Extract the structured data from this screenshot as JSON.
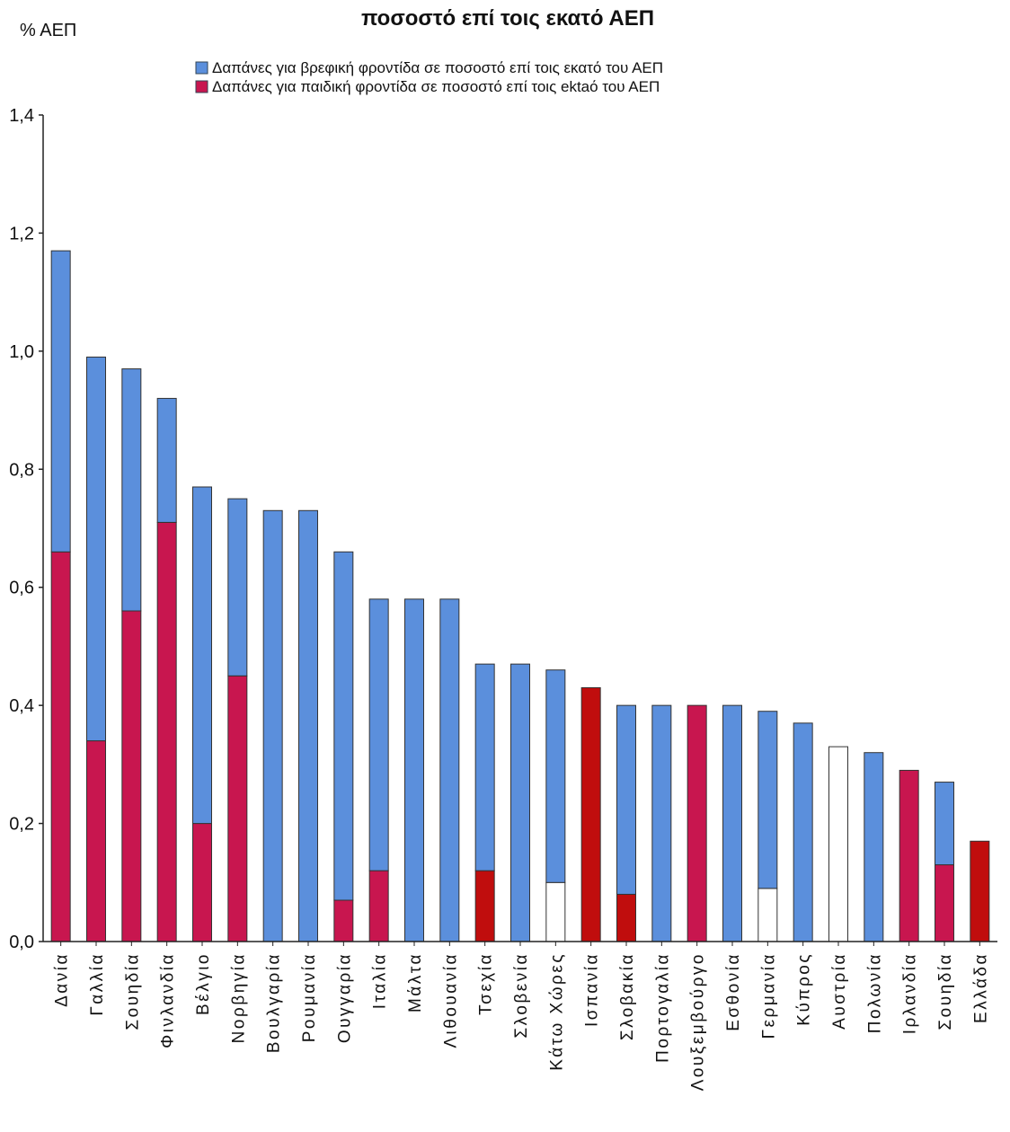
{
  "chart_data": {
    "type": "bar",
    "stacked": true,
    "title": "ποσοστό επί τοις εκατό ΑΕΠ",
    "ylabel": "% ΑΕΠ",
    "xlabel": "",
    "ylim": [
      0,
      1.4
    ],
    "y_ticks": [
      "0,0",
      "0,2",
      "0,4",
      "0,6",
      "0,8",
      "1,0",
      "1,2",
      "1,4"
    ],
    "legend_position": "top-center",
    "categories": [
      "Δανία",
      "Γαλλία",
      "Σουηδία",
      "Φινλανδία",
      "Βέλγιο",
      "Νορβηγία",
      "Βουλγαρία",
      "Ρουμανία",
      "Ουγγαρία",
      "Ιταλία",
      "Μάλτα",
      "Λιθουανία",
      "Τσεχία",
      "Σλοβενία",
      "Κάτω Χώρες",
      "Ισπανία",
      "Σλοβακία",
      "Πορτογαλία",
      "Λουξεμβούργο",
      "Εσθονία",
      "Γερμανία",
      "Κύπρος",
      "Αυστρία",
      "Πολωνία",
      "Ιρλανδία",
      "Σουηδία",
      "Ελλάδα"
    ],
    "series": [
      {
        "name": "Δαπάνες για παιδική φροντίδα σε ποσοστό επί τοις ektaό του ΑΕΠ",
        "color": "#c8164f",
        "values": [
          0.66,
          0.34,
          0.56,
          0.71,
          0.2,
          0.45,
          0.0,
          0.0,
          0.07,
          0.12,
          0.0,
          0.0,
          0.12,
          0.0,
          0.1,
          0.43,
          0.08,
          0.0,
          0.4,
          0.0,
          0.09,
          0.0,
          0.33,
          0.0,
          0.29,
          0.13,
          0.17
        ],
        "segment_colors": [
          "#c8164f",
          "#c8164f",
          "#c8164f",
          "#c8164f",
          "#c8164f",
          "#c8164f",
          "#c8164f",
          "#c8164f",
          "#c8164f",
          "#c8164f",
          "#c8164f",
          "#c8164f",
          "#c00d0d",
          "#c8164f",
          "#ffffff",
          "#c00d0d",
          "#c00d0d",
          "#c8164f",
          "#c8164f",
          "#c8164f",
          "#ffffff",
          "#c8164f",
          "#ffffff",
          "#c8164f",
          "#c8164f",
          "#c8164f",
          "#c00d0d"
        ]
      },
      {
        "name": "Δαπάνες για βρεφική φροντίδα σε ποσοστό επί τοις εκατό του ΑΕΠ",
        "color": "#5b8fdc",
        "values": [
          0.51,
          0.65,
          0.41,
          0.21,
          0.57,
          0.3,
          0.73,
          0.73,
          0.59,
          0.46,
          0.58,
          0.58,
          0.35,
          0.47,
          0.36,
          0.0,
          0.32,
          0.4,
          0.0,
          0.4,
          0.3,
          0.37,
          0.0,
          0.32,
          0.0,
          0.14,
          0.0
        ]
      }
    ]
  }
}
